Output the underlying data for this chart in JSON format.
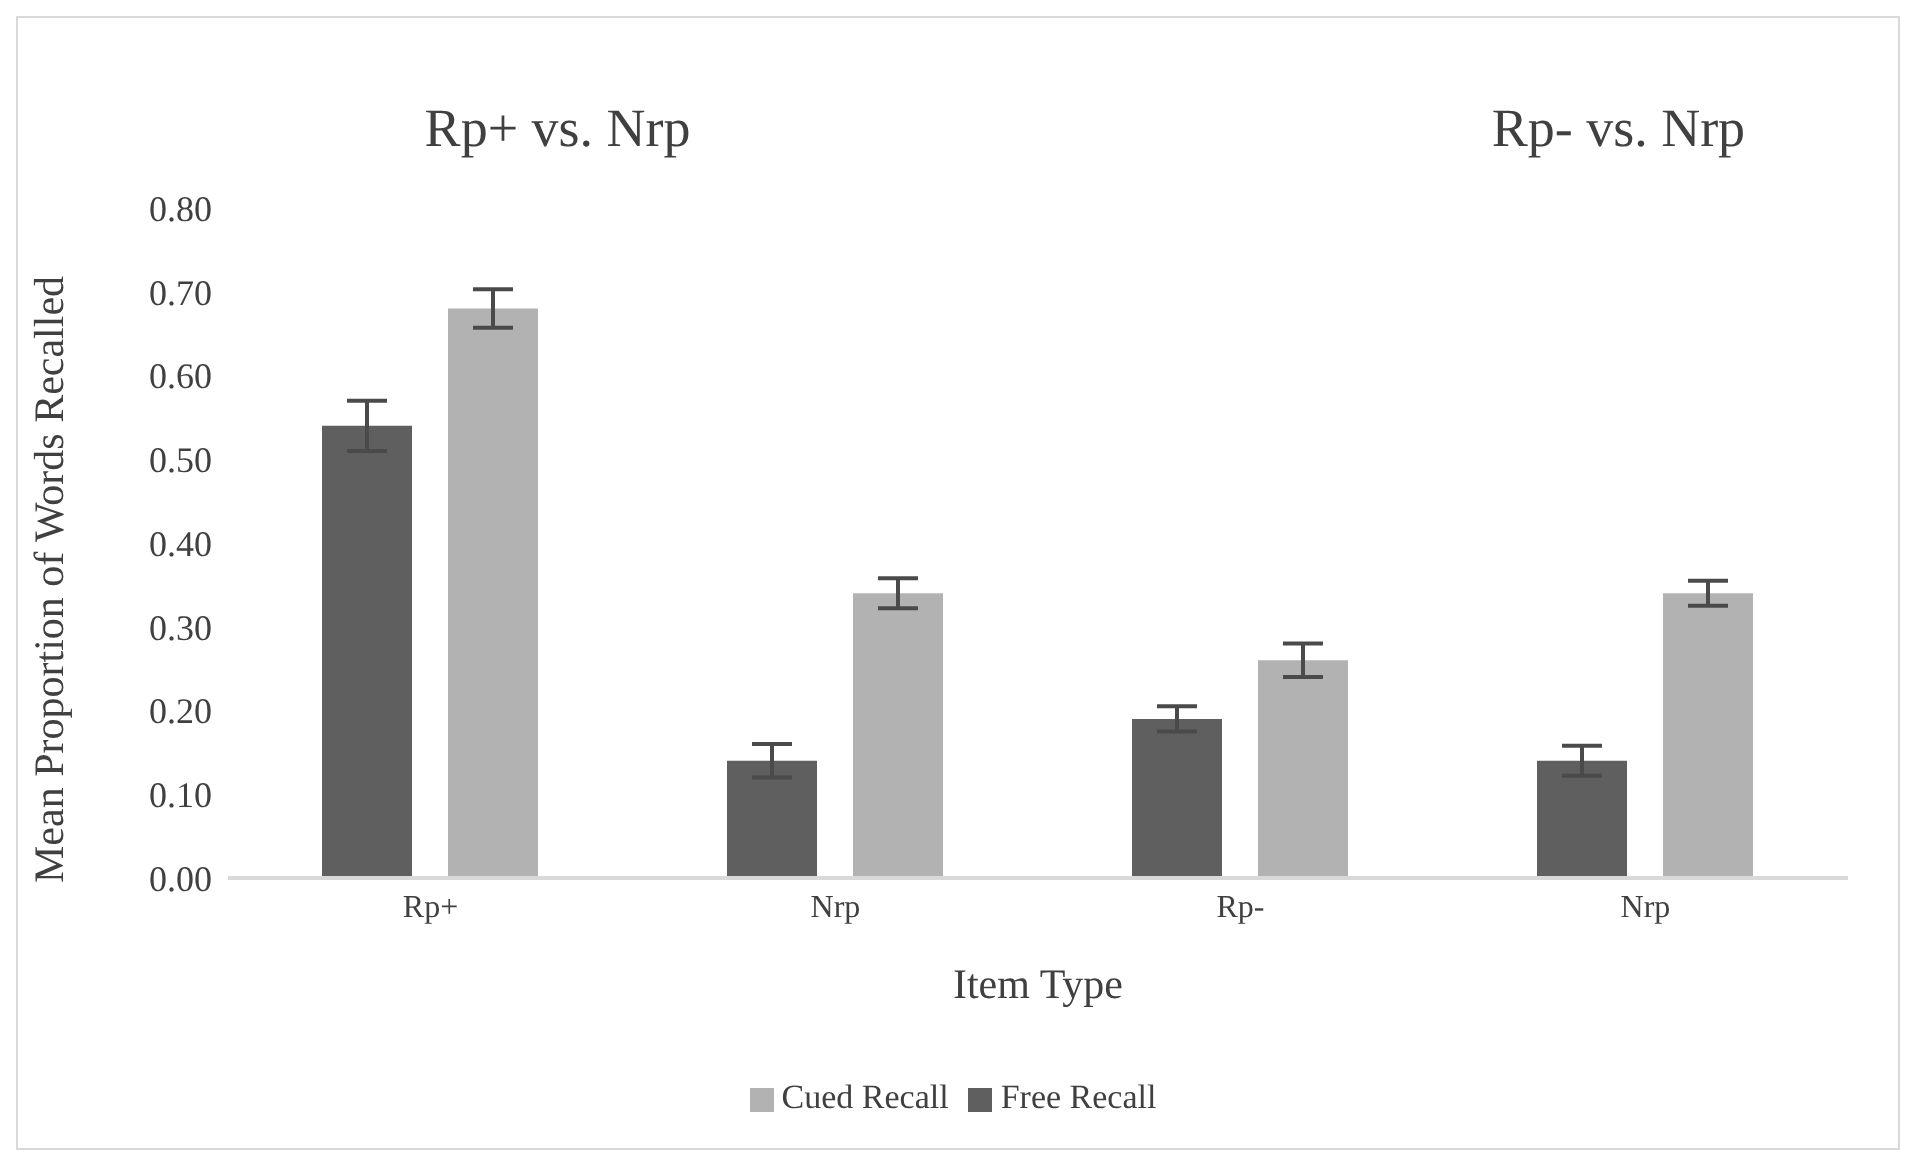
{
  "chart_data": {
    "type": "bar",
    "xlabel": "Item Type",
    "ylabel": "Mean Proportion of Words Recalled",
    "annotations": [
      "Rp+ vs. Nrp",
      "Rp- vs. Nrp"
    ],
    "categories": [
      "Rp+",
      "Nrp",
      "Rp-",
      "Nrp"
    ],
    "series": [
      {
        "name": "Free Recall",
        "color": "#5f5f5f",
        "values": [
          0.54,
          0.14,
          0.19,
          0.14
        ],
        "errors": [
          0.03,
          0.02,
          0.015,
          0.018
        ]
      },
      {
        "name": "Cued Recall",
        "color": "#b2b2b2",
        "values": [
          0.68,
          0.34,
          0.26,
          0.34
        ],
        "errors": [
          0.023,
          0.018,
          0.02,
          0.015
        ]
      }
    ],
    "ylim": [
      0,
      0.8
    ],
    "yticks": [
      {
        "value": 0,
        "label": "0.00"
      },
      {
        "value": 0.1,
        "label": "0.10"
      },
      {
        "value": 0.2,
        "label": "0.20"
      },
      {
        "value": 0.3,
        "label": "0.30"
      },
      {
        "value": 0.4,
        "label": "0.40"
      },
      {
        "value": 0.5,
        "label": "0.50"
      },
      {
        "value": 0.6,
        "label": "0.60"
      },
      {
        "value": 0.7,
        "label": "0.70"
      },
      {
        "value": 0.8,
        "label": "0.80"
      }
    ],
    "grid": false,
    "legend": "bottom"
  }
}
